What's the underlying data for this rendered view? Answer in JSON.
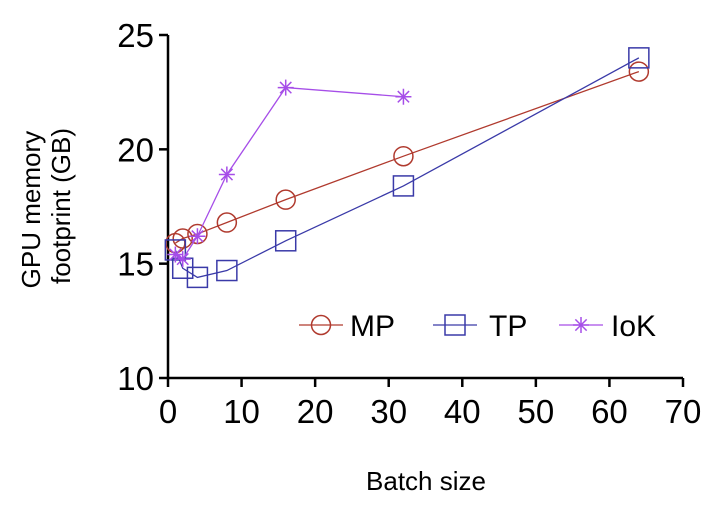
{
  "chart_data": {
    "type": "line",
    "title": "",
    "xlabel": "Batch size",
    "ylabel_lines": [
      "GPU memory",
      "footprint (GB)"
    ],
    "xlim": [
      0,
      70
    ],
    "ylim": [
      10,
      25
    ],
    "xticks": [
      0,
      10,
      20,
      30,
      40,
      50,
      60,
      70
    ],
    "yticks": [
      10,
      15,
      20,
      25
    ],
    "grid": false,
    "legend_position": "bottom-right",
    "series": [
      {
        "name": "MP",
        "marker": "circle",
        "color": "#b03a2e",
        "x": [
          1,
          2,
          4,
          8,
          16,
          32,
          64
        ],
        "y": [
          15.9,
          16.1,
          16.3,
          16.8,
          17.8,
          19.7,
          23.4
        ]
      },
      {
        "name": "TP",
        "marker": "square",
        "color": "#3a3aa8",
        "x": [
          1,
          2,
          4,
          8,
          16,
          32,
          64
        ],
        "y": [
          15.6,
          14.8,
          14.4,
          14.7,
          16.0,
          18.4,
          24.0
        ]
      },
      {
        "name": "IoK",
        "marker": "asterisk",
        "color": "#a64ee8",
        "x": [
          1,
          2,
          4,
          8,
          16,
          32
        ],
        "y": [
          15.4,
          15.2,
          16.2,
          18.9,
          22.7,
          22.3
        ]
      }
    ]
  }
}
